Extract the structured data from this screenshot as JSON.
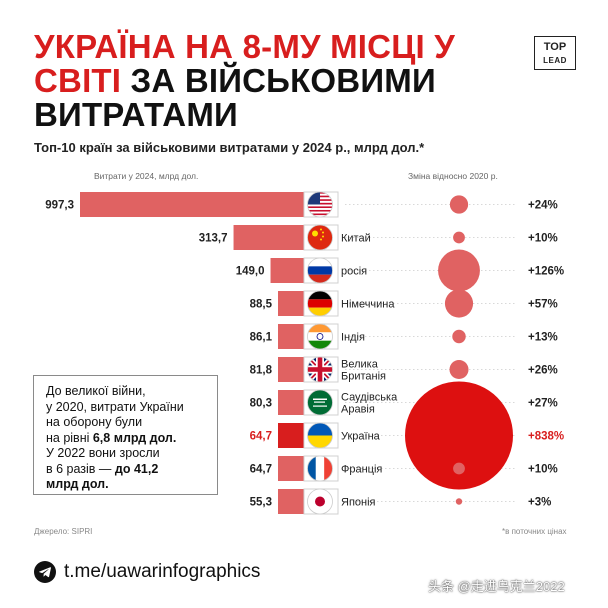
{
  "header": {
    "title_red": "УКРАЇНА НА 8-МУ МІСЦІ У СВІТІ",
    "title_black_1": "ЗА ВІЙСЬКОВИМИ",
    "title_black_2": "ВИТРАТАМИ",
    "logo_top": "TOP",
    "logo_bottom": "LEAD",
    "subtitle": "Топ-10 країн за військовими витратами у 2024 р., млрд дол.*"
  },
  "columns": {
    "left": "Витрати у 2024, млрд дол.",
    "right": "Зміна відносно 2020 р."
  },
  "callout": {
    "line1": "До великої війни,",
    "line2": "у 2020, витрати України",
    "line3": "на оборону були",
    "line4_pre": "на рівні ",
    "line4_bold": "6,8 млрд дол.",
    "line5": "У 2022 вони зросли",
    "line6_pre": "в 6 разів — ",
    "line6_bold": "до 41,2",
    "line7_bold": "млрд дол."
  },
  "source": "Джерело: SIPRI",
  "prices_note": "*в поточних цінах",
  "footer": {
    "link": "t.me/uawarinfographics"
  },
  "watermark": "头条 @走进乌克兰2022",
  "colors": {
    "bar": "#e06262",
    "bar_highlight": "#d81e1e",
    "bubble": "#e06262",
    "bubble_highlight": "#dd1010",
    "dots": "#d8d8d8"
  },
  "chart_data": {
    "type": "bar",
    "title": "Топ-10 країн за військовими витратами у 2024 р., млрд дол.*",
    "categories": [
      "США",
      "Китай",
      "росія",
      "Німеччина",
      "Індія",
      "Велика Британія",
      "Саудівська Аравія",
      "Україна",
      "Франція",
      "Японія"
    ],
    "category_labels_visible": [
      "",
      "Китай",
      "росія",
      "Німеччина",
      "Індія",
      "Велика\nБританія",
      "Саудівська\nАравія",
      "Україна",
      "Франція",
      "Японія"
    ],
    "flags": [
      "flag-usa-icon",
      "flag-china-icon",
      "flag-russia-icon",
      "flag-germany-icon",
      "flag-india-icon",
      "flag-uk-icon",
      "flag-saudi-icon",
      "flag-ukraine-icon",
      "flag-france-icon",
      "flag-japan-icon"
    ],
    "values": [
      997.3,
      313.7,
      149.0,
      88.5,
      86.1,
      81.8,
      80.3,
      64.7,
      64.7,
      55.3
    ],
    "value_labels": [
      "997,3",
      "313,7",
      "149,0",
      "88,5",
      "86,1",
      "81,8",
      "80,3",
      "64,7",
      "64,7",
      "55,3"
    ],
    "change_2020_pct": [
      24,
      10,
      126,
      57,
      13,
      26,
      27,
      838,
      10,
      3
    ],
    "change_labels": [
      "+24%",
      "+10%",
      "+126%",
      "+57%",
      "+13%",
      "+26%",
      "+27%",
      "+838%",
      "+10%",
      "+3%"
    ],
    "highlight_index": 7,
    "xlabel": "Витрати у 2024, млрд дол.",
    "ylabel": ""
  }
}
